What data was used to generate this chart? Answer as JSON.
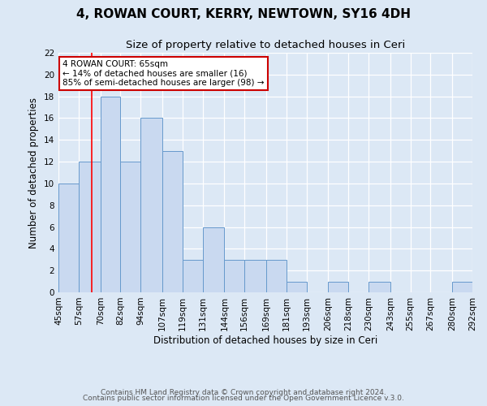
{
  "title": "4, ROWAN COURT, KERRY, NEWTOWN, SY16 4DH",
  "subtitle": "Size of property relative to detached houses in Ceri",
  "xlabel": "Distribution of detached houses by size in Ceri",
  "ylabel": "Number of detached properties",
  "bin_edges": [
    45,
    57,
    70,
    82,
    94,
    107,
    119,
    131,
    144,
    156,
    169,
    181,
    193,
    206,
    218,
    230,
    243,
    255,
    267,
    280,
    292
  ],
  "counts": [
    10,
    12,
    18,
    12,
    16,
    13,
    3,
    6,
    3,
    3,
    3,
    1,
    0,
    1,
    0,
    1,
    0,
    0,
    0,
    1
  ],
  "bar_color": "#c9d9f0",
  "bar_edge_color": "#6699cc",
  "red_line_x": 65,
  "ylim": [
    0,
    22
  ],
  "yticks": [
    0,
    2,
    4,
    6,
    8,
    10,
    12,
    14,
    16,
    18,
    20,
    22
  ],
  "annotation_title": "4 ROWAN COURT: 65sqm",
  "annotation_line1": "← 14% of detached houses are smaller (16)",
  "annotation_line2": "85% of semi-detached houses are larger (98) →",
  "footer_line1": "Contains HM Land Registry data © Crown copyright and database right 2024.",
  "footer_line2": "Contains public sector information licensed under the Open Government Licence v.3.0.",
  "background_color": "#dce8f5",
  "plot_bg_color": "#dce8f5",
  "grid_color": "#ffffff",
  "title_fontsize": 11,
  "subtitle_fontsize": 9.5,
  "axis_fontsize": 8.5,
  "tick_fontsize": 7.5,
  "footer_fontsize": 6.5,
  "annotation_box_color": "#ffffff",
  "annotation_border_color": "#cc0000"
}
